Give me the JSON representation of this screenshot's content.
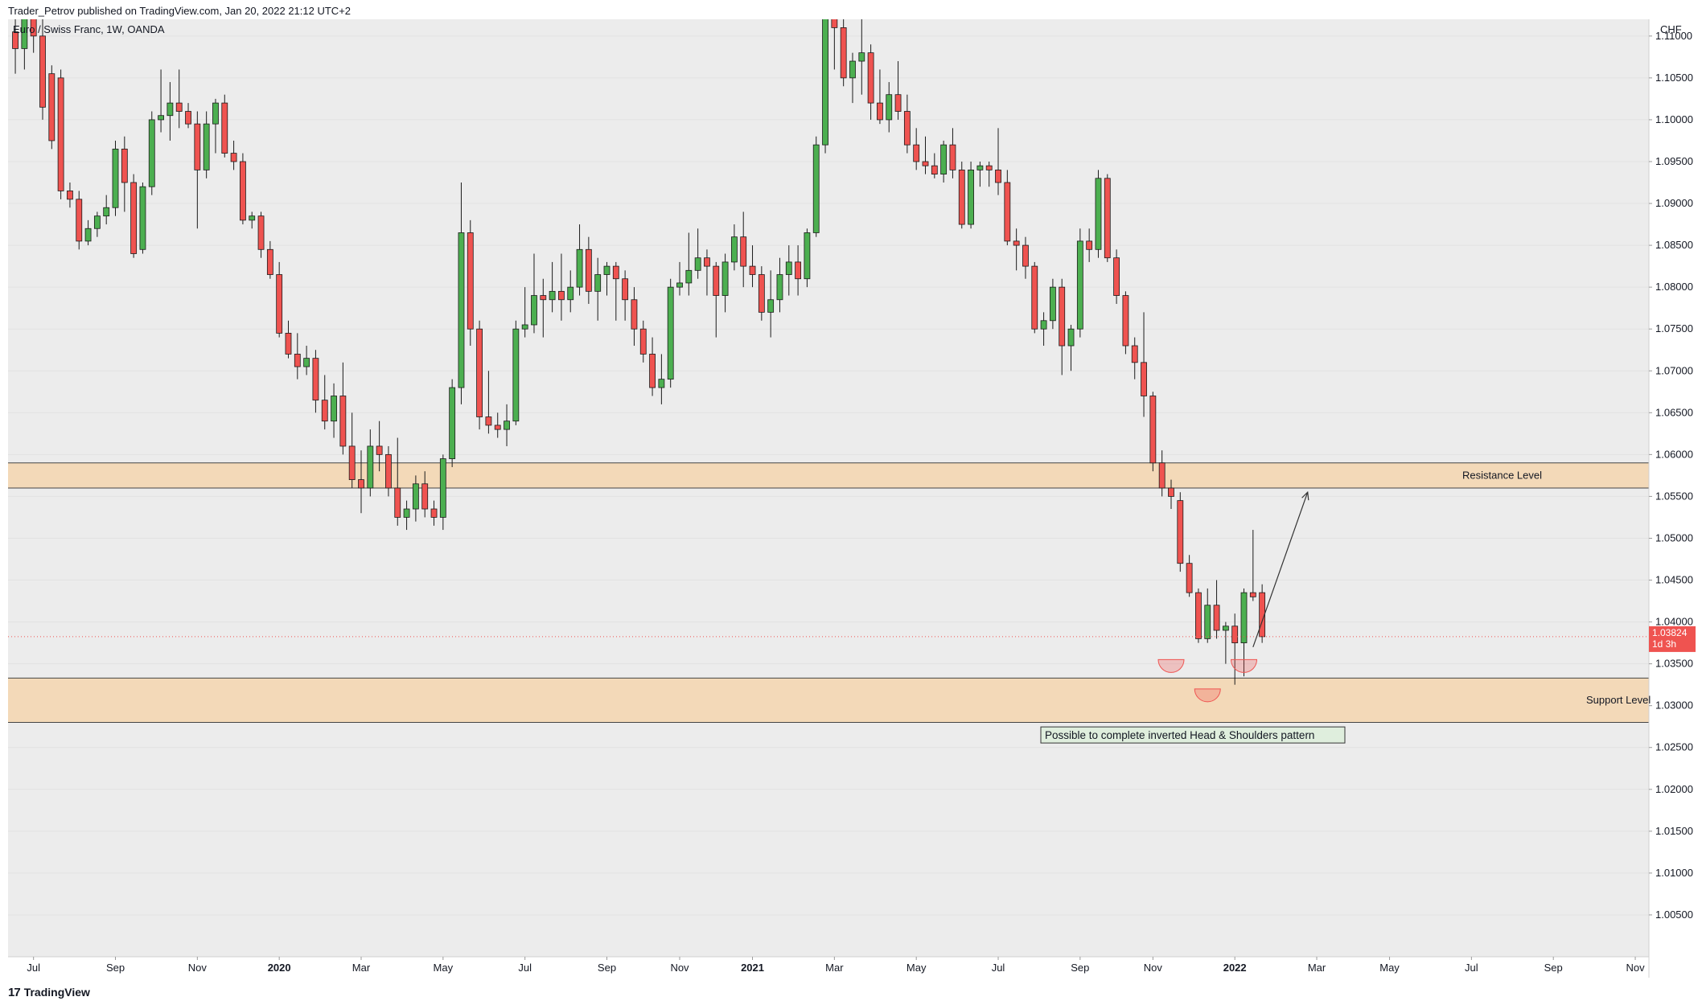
{
  "publisher_line": "Trader_Petrov published on TradingView.com, Jan 20, 2022 21:12 UTC+2",
  "brand": {
    "logo_text": "17",
    "name": "TradingView"
  },
  "colors": {
    "up": "#4caf50",
    "down": "#ef5350",
    "zone_fill": "#f3d9b8",
    "zone_border": "#444444",
    "plot_bg": "#ececec",
    "price_tag": "#ef5350",
    "note_bg": "#dfeedd"
  },
  "chart_data": {
    "type": "candlestick",
    "symbol_label": "Euro / Swiss Franc, 1W, OANDA",
    "currency": "CHF",
    "ylim": [
      1.0,
      1.112
    ],
    "y_ticks": [
      1.005,
      1.01,
      1.015,
      1.02,
      1.025,
      1.03,
      1.035,
      1.04,
      1.045,
      1.05,
      1.055,
      1.06,
      1.065,
      1.07,
      1.075,
      1.08,
      1.085,
      1.09,
      1.095,
      1.1,
      1.105,
      1.11
    ],
    "y_tick_labels": [
      "1.00500",
      "1.01000",
      "1.01500",
      "1.02000",
      "1.02500",
      "1.03000",
      "1.03500",
      "1.04000",
      "1.04500",
      "1.05000",
      "1.05500",
      "1.06000",
      "1.06500",
      "1.07000",
      "1.07500",
      "1.08000",
      "1.08500",
      "1.09000",
      "1.09500",
      "1.10000",
      "1.10500",
      "1.11000"
    ],
    "x_ticks": [
      {
        "label": "Jul",
        "index": 2,
        "bold": false
      },
      {
        "label": "Sep",
        "index": 11,
        "bold": false
      },
      {
        "label": "Nov",
        "index": 20,
        "bold": false
      },
      {
        "label": "2020",
        "index": 29,
        "bold": true
      },
      {
        "label": "Mar",
        "index": 38,
        "bold": false
      },
      {
        "label": "May",
        "index": 47,
        "bold": false
      },
      {
        "label": "Jul",
        "index": 56,
        "bold": false
      },
      {
        "label": "Sep",
        "index": 65,
        "bold": false
      },
      {
        "label": "Nov",
        "index": 73,
        "bold": false
      },
      {
        "label": "2021",
        "index": 81,
        "bold": true
      },
      {
        "label": "Mar",
        "index": 90,
        "bold": false
      },
      {
        "label": "May",
        "index": 99,
        "bold": false
      },
      {
        "label": "Jul",
        "index": 108,
        "bold": false
      },
      {
        "label": "Sep",
        "index": 117,
        "bold": false
      },
      {
        "label": "Nov",
        "index": 125,
        "bold": false
      },
      {
        "label": "2022",
        "index": 134,
        "bold": true
      },
      {
        "label": "Mar",
        "index": 143,
        "bold": false
      },
      {
        "label": "May",
        "index": 151,
        "bold": false
      },
      {
        "label": "Jul",
        "index": 160,
        "bold": false
      },
      {
        "label": "Sep",
        "index": 169,
        "bold": false
      },
      {
        "label": "Nov",
        "index": 178,
        "bold": false
      }
    ],
    "x_range": [
      -0.8,
      179.5
    ],
    "last_price": {
      "value": 1.03824,
      "label": "1.03824",
      "countdown": "1d 3h"
    },
    "candles": [
      [
        1.1105,
        1.1135,
        1.1055,
        1.1085
      ],
      [
        1.1085,
        1.117,
        1.106,
        1.114
      ],
      [
        1.114,
        1.116,
        1.108,
        1.11
      ],
      [
        1.11,
        1.112,
        1.1,
        1.1015
      ],
      [
        1.1055,
        1.1065,
        1.0965,
        1.0975
      ],
      [
        1.105,
        1.106,
        1.0905,
        1.0915
      ],
      [
        1.0915,
        1.0925,
        1.0895,
        1.0905
      ],
      [
        1.0905,
        1.0915,
        1.0845,
        1.0855
      ],
      [
        1.0855,
        1.088,
        1.085,
        1.087
      ],
      [
        1.087,
        1.089,
        1.086,
        1.0885
      ],
      [
        1.0885,
        1.091,
        1.0875,
        1.0895
      ],
      [
        1.0895,
        1.0975,
        1.0885,
        1.0965
      ],
      [
        1.0965,
        1.098,
        1.089,
        1.0925
      ],
      [
        1.0925,
        1.0935,
        1.0835,
        1.084
      ],
      [
        1.0845,
        1.0925,
        1.084,
        1.092
      ],
      [
        1.092,
        1.101,
        1.091,
        1.1
      ],
      [
        1.1,
        1.106,
        1.0985,
        1.1005
      ],
      [
        1.1005,
        1.1045,
        1.0975,
        1.102
      ],
      [
        1.102,
        1.106,
        1.099,
        1.101
      ],
      [
        1.101,
        1.102,
        1.099,
        1.0995
      ],
      [
        1.0995,
        1.101,
        1.087,
        1.094
      ],
      [
        1.094,
        1.101,
        1.093,
        1.0995
      ],
      [
        1.0995,
        1.1025,
        1.096,
        1.102
      ],
      [
        1.102,
        1.103,
        1.0955,
        1.096
      ],
      [
        1.096,
        1.0975,
        1.094,
        1.095
      ],
      [
        1.095,
        1.096,
        1.0875,
        1.088
      ],
      [
        1.088,
        1.089,
        1.087,
        1.0885
      ],
      [
        1.0885,
        1.089,
        1.0835,
        1.0845
      ],
      [
        1.0845,
        1.0855,
        1.081,
        1.0815
      ],
      [
        1.0815,
        1.083,
        1.074,
        1.0745
      ],
      [
        1.0745,
        1.076,
        1.0715,
        1.072
      ],
      [
        1.072,
        1.0745,
        1.069,
        1.0705
      ],
      [
        1.0705,
        1.073,
        1.0695,
        1.0715
      ],
      [
        1.0715,
        1.0725,
        1.065,
        1.0665
      ],
      [
        1.0665,
        1.0695,
        1.063,
        1.064
      ],
      [
        1.064,
        1.0685,
        1.062,
        1.067
      ],
      [
        1.067,
        1.071,
        1.06,
        1.061
      ],
      [
        1.061,
        1.065,
        1.056,
        1.057
      ],
      [
        1.057,
        1.0605,
        1.053,
        1.056
      ],
      [
        1.056,
        1.063,
        1.055,
        1.061
      ],
      [
        1.061,
        1.064,
        1.058,
        1.06
      ],
      [
        1.06,
        1.061,
        1.055,
        1.056
      ],
      [
        1.056,
        1.062,
        1.0515,
        1.0525
      ],
      [
        1.0525,
        1.0545,
        1.051,
        1.0535
      ],
      [
        1.0535,
        1.0575,
        1.052,
        1.0565
      ],
      [
        1.0565,
        1.058,
        1.0525,
        1.0535
      ],
      [
        1.0535,
        1.0545,
        1.0515,
        1.0525
      ],
      [
        1.0525,
        1.06,
        1.051,
        1.0595
      ],
      [
        1.0595,
        1.069,
        1.0585,
        1.068
      ],
      [
        1.068,
        1.0925,
        1.066,
        1.0865
      ],
      [
        1.0865,
        1.088,
        1.073,
        1.075
      ],
      [
        1.075,
        1.076,
        1.063,
        1.0645
      ],
      [
        1.0645,
        1.07,
        1.0625,
        1.0635
      ],
      [
        1.0635,
        1.065,
        1.062,
        1.063
      ],
      [
        1.063,
        1.066,
        1.061,
        1.064
      ],
      [
        1.064,
        1.076,
        1.0635,
        1.075
      ],
      [
        1.075,
        1.08,
        1.074,
        1.0755
      ],
      [
        1.0755,
        1.084,
        1.0745,
        1.079
      ],
      [
        1.079,
        1.081,
        1.074,
        1.0785
      ],
      [
        1.0785,
        1.083,
        1.077,
        1.0795
      ],
      [
        1.0795,
        1.084,
        1.076,
        1.0785
      ],
      [
        1.0785,
        1.082,
        1.077,
        1.08
      ],
      [
        1.08,
        1.0875,
        1.079,
        1.0845
      ],
      [
        1.0845,
        1.086,
        1.078,
        1.0795
      ],
      [
        1.0795,
        1.0835,
        1.076,
        1.0815
      ],
      [
        1.0815,
        1.083,
        1.079,
        1.0825
      ],
      [
        1.0825,
        1.083,
        1.076,
        1.081
      ],
      [
        1.081,
        1.082,
        1.076,
        1.0785
      ],
      [
        1.0785,
        1.08,
        1.073,
        1.075
      ],
      [
        1.075,
        1.076,
        1.071,
        1.072
      ],
      [
        1.072,
        1.074,
        1.067,
        1.068
      ],
      [
        1.068,
        1.072,
        1.066,
        1.069
      ],
      [
        1.069,
        1.081,
        1.068,
        1.08
      ],
      [
        1.08,
        1.083,
        1.079,
        1.0805
      ],
      [
        1.0805,
        1.0865,
        1.079,
        1.082
      ],
      [
        1.082,
        1.087,
        1.081,
        1.0835
      ],
      [
        1.0835,
        1.0845,
        1.079,
        1.0825
      ],
      [
        1.0825,
        1.083,
        1.074,
        1.079
      ],
      [
        1.079,
        1.084,
        1.077,
        1.083
      ],
      [
        1.083,
        1.0875,
        1.082,
        1.086
      ],
      [
        1.086,
        1.089,
        1.08,
        1.0825
      ],
      [
        1.0825,
        1.085,
        1.08,
        1.0815
      ],
      [
        1.0815,
        1.0825,
        1.076,
        1.077
      ],
      [
        1.077,
        1.082,
        1.074,
        1.0785
      ],
      [
        1.0785,
        1.0835,
        1.077,
        1.0815
      ],
      [
        1.0815,
        1.085,
        1.079,
        1.083
      ],
      [
        1.083,
        1.085,
        1.079,
        1.081
      ],
      [
        1.081,
        1.087,
        1.08,
        1.0865
      ],
      [
        1.0865,
        1.098,
        1.086,
        1.097
      ],
      [
        1.097,
        1.115,
        1.096,
        1.113
      ],
      [
        1.113,
        1.116,
        1.106,
        1.111
      ],
      [
        1.111,
        1.1145,
        1.104,
        1.105
      ],
      [
        1.105,
        1.108,
        1.102,
        1.107
      ],
      [
        1.107,
        1.115,
        1.103,
        1.108
      ],
      [
        1.108,
        1.109,
        1.1,
        1.102
      ],
      [
        1.102,
        1.106,
        1.0995,
        1.1
      ],
      [
        1.1,
        1.1045,
        1.0985,
        1.103
      ],
      [
        1.103,
        1.107,
        1.1,
        1.101
      ],
      [
        1.101,
        1.103,
        1.096,
        1.097
      ],
      [
        1.097,
        1.099,
        1.094,
        1.095
      ],
      [
        1.095,
        1.098,
        1.0935,
        1.0945
      ],
      [
        1.0945,
        1.096,
        1.093,
        1.0935
      ],
      [
        1.0935,
        1.0975,
        1.0925,
        1.097
      ],
      [
        1.097,
        1.099,
        1.093,
        1.094
      ],
      [
        1.094,
        1.095,
        1.087,
        1.0875
      ],
      [
        1.0875,
        1.095,
        1.087,
        1.094
      ],
      [
        1.094,
        1.095,
        1.092,
        1.0945
      ],
      [
        1.0945,
        1.095,
        1.092,
        1.094
      ],
      [
        1.094,
        1.099,
        1.091,
        1.0925
      ],
      [
        1.0925,
        1.094,
        1.085,
        1.0855
      ],
      [
        1.0855,
        1.087,
        1.082,
        1.085
      ],
      [
        1.085,
        1.086,
        1.081,
        1.0825
      ],
      [
        1.0825,
        1.083,
        1.0745,
        1.075
      ],
      [
        1.075,
        1.077,
        1.073,
        1.076
      ],
      [
        1.076,
        1.081,
        1.075,
        1.08
      ],
      [
        1.08,
        1.081,
        1.0695,
        1.073
      ],
      [
        1.073,
        1.0755,
        1.07,
        1.075
      ],
      [
        1.075,
        1.087,
        1.074,
        1.0855
      ],
      [
        1.0855,
        1.087,
        1.083,
        1.0845
      ],
      [
        1.0845,
        1.094,
        1.0835,
        1.093
      ],
      [
        1.093,
        1.0935,
        1.083,
        1.0835
      ],
      [
        1.0835,
        1.0845,
        1.078,
        1.079
      ],
      [
        1.079,
        1.0795,
        1.072,
        1.073
      ],
      [
        1.073,
        1.074,
        1.069,
        1.071
      ],
      [
        1.071,
        1.077,
        1.0645,
        1.067
      ],
      [
        1.067,
        1.0675,
        1.058,
        1.059
      ],
      [
        1.059,
        1.0605,
        1.055,
        1.056
      ],
      [
        1.056,
        1.057,
        1.0535,
        1.055
      ],
      [
        1.0545,
        1.0555,
        1.046,
        1.047
      ],
      [
        1.047,
        1.048,
        1.043,
        1.0435
      ],
      [
        1.0435,
        1.044,
        1.0375,
        1.038
      ],
      [
        1.038,
        1.044,
        1.0375,
        1.042
      ],
      [
        1.042,
        1.045,
        1.038,
        1.039
      ],
      [
        1.039,
        1.04,
        1.035,
        1.0395
      ],
      [
        1.0395,
        1.041,
        1.0325,
        1.0375
      ],
      [
        1.0375,
        1.044,
        1.0335,
        1.0435
      ],
      [
        1.0435,
        1.051,
        1.0425,
        1.043
      ],
      [
        1.0435,
        1.0445,
        1.0375,
        1.03824
      ]
    ]
  },
  "annotations": {
    "resistance": {
      "low": 1.056,
      "high": 1.059,
      "label": "Resistance Level"
    },
    "support": {
      "low": 1.028,
      "high": 1.0333,
      "label": "Support Level"
    },
    "note": "Possible to complete inverted Head & Shoulders pattern",
    "arc_marks": [
      {
        "index": 127,
        "price": 1.0355
      },
      {
        "index": 131,
        "price": 1.032
      },
      {
        "index": 135,
        "price": 1.0355
      }
    ],
    "projection_arrow": {
      "from_index": 136,
      "from_price": 1.037,
      "to_index": 142,
      "to_price": 1.0555
    }
  }
}
